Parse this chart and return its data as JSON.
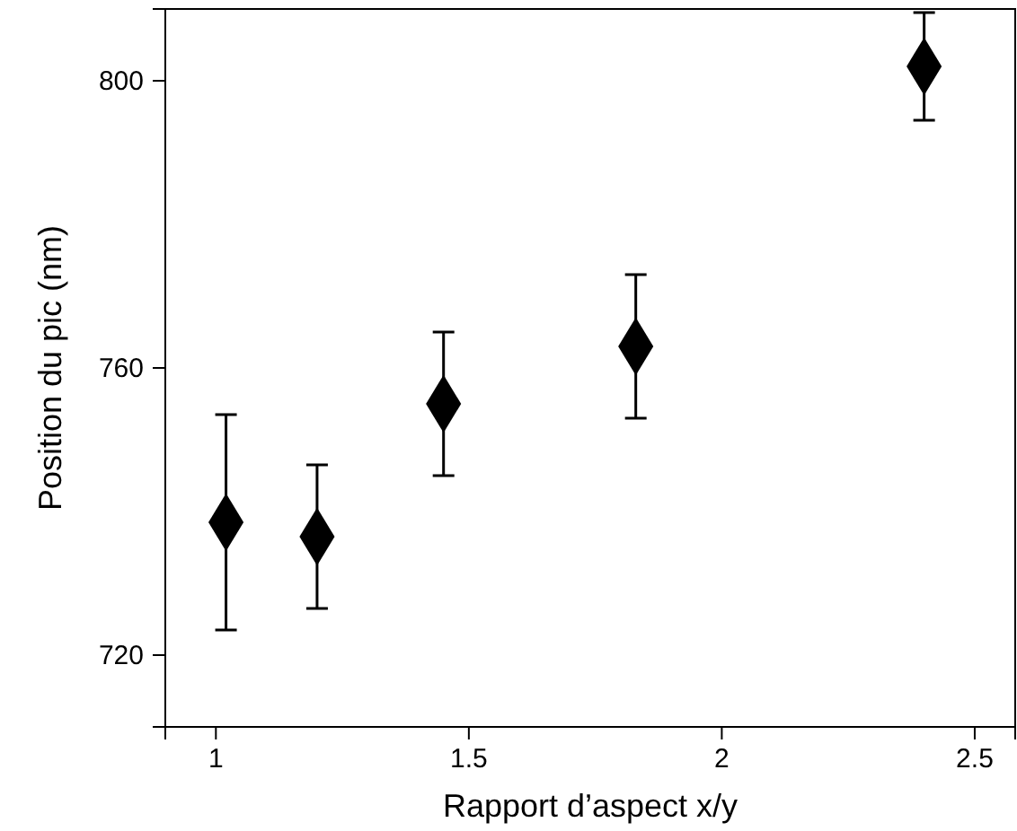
{
  "chart_data": {
    "type": "scatter",
    "xlabel": "Rapport d’aspect x/y",
    "ylabel": "Position du pic (nm)",
    "x": [
      1.02,
      1.2,
      1.45,
      1.83,
      2.4
    ],
    "values": [
      738.5,
      736.5,
      755,
      763,
      802
    ],
    "errors": [
      15,
      10,
      10,
      10,
      7.5
    ],
    "color": "#000000",
    "marker": "diamond",
    "xlim": [
      0.9,
      2.58
    ],
    "xticks": [
      1,
      1.5,
      2,
      2.5
    ],
    "ylim": [
      710,
      810
    ],
    "yticks": [
      720,
      760,
      800
    ],
    "grid": false
  }
}
